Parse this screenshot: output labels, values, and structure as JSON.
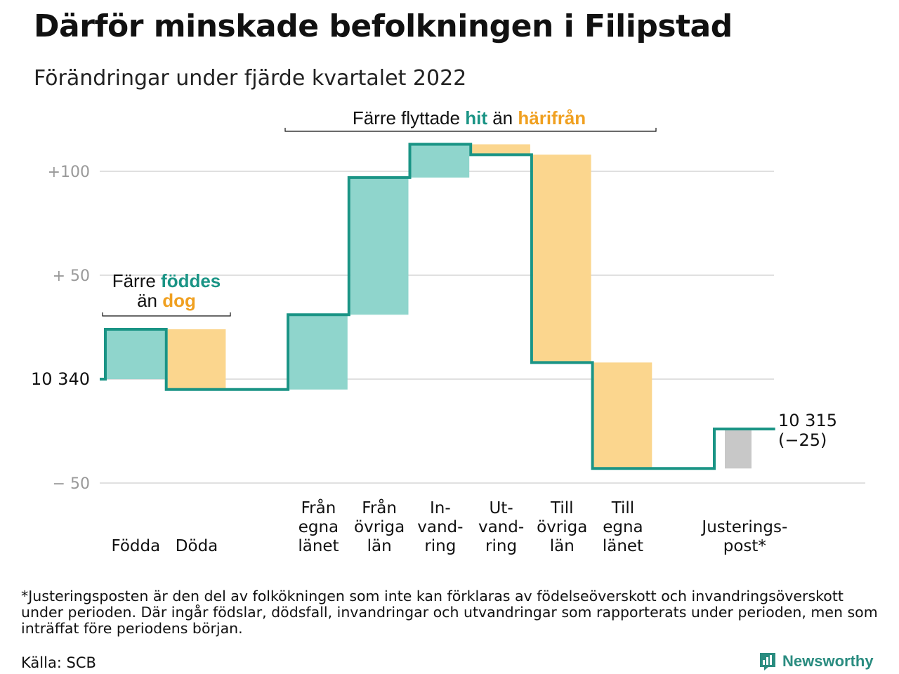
{
  "header": {
    "title": "Därför minskade befolkningen i Filipstad",
    "subtitle": "Förändringar under fjärde kvartalet 2022"
  },
  "colors": {
    "increase": "#8fd5cc",
    "decrease": "#fbd68e",
    "adjustment": "#c8c8c8",
    "line": "#1a9485",
    "highlight_teal": "#1a9485",
    "highlight_orange": "#f0a020",
    "grid": "#e0e0e0",
    "tick_text": "#999999"
  },
  "chart_data": {
    "type": "waterfall",
    "start_value": 10340,
    "start_label": "10 340",
    "end_value": 10315,
    "end_label": "10 315",
    "end_change_label": "(−25)",
    "yticks": [
      {
        "value": 100,
        "label": "+100"
      },
      {
        "value": 50,
        "label": "+ 50"
      },
      {
        "value": 0,
        "label": "10 340"
      },
      {
        "value": -50,
        "label": "− 50"
      }
    ],
    "ylim": [
      -55,
      130
    ],
    "steps": [
      {
        "label_lines": [
          "Födda"
        ],
        "delta": 24,
        "kind": "increase"
      },
      {
        "label_lines": [
          "Döda"
        ],
        "delta": -29,
        "kind": "decrease"
      },
      {
        "label_lines": [],
        "delta": 0,
        "kind": "gap"
      },
      {
        "label_lines": [
          "Från",
          "egna",
          "länet"
        ],
        "delta": 36,
        "kind": "increase"
      },
      {
        "label_lines": [
          "Från",
          "övriga",
          "län"
        ],
        "delta": 66,
        "kind": "increase"
      },
      {
        "label_lines": [
          "In-",
          "vand-",
          "ring"
        ],
        "delta": 16,
        "kind": "increase"
      },
      {
        "label_lines": [
          "Ut-",
          "vand-",
          "ring"
        ],
        "delta": -5,
        "kind": "decrease"
      },
      {
        "label_lines": [
          "Till",
          "övriga",
          "län"
        ],
        "delta": -100,
        "kind": "decrease"
      },
      {
        "label_lines": [
          "Till",
          "egna",
          "länet"
        ],
        "delta": -51,
        "kind": "decrease"
      },
      {
        "label_lines": [],
        "delta": 0,
        "kind": "gap"
      },
      {
        "label_lines": [
          "Justerings-",
          "post*"
        ],
        "delta": 19,
        "kind": "adjustment"
      }
    ],
    "annotations": [
      {
        "id": "births",
        "parts": [
          {
            "text": "Färre ",
            "color": "default"
          },
          {
            "text": "föddes",
            "color": "teal"
          }
        ],
        "parts2": [
          {
            "text": "än ",
            "color": "default"
          },
          {
            "text": "dog",
            "color": "orange"
          }
        ]
      },
      {
        "id": "moves",
        "parts": [
          {
            "text": "Färre flyttade ",
            "color": "default"
          },
          {
            "text": "hit",
            "color": "teal"
          },
          {
            "text": " än ",
            "color": "default"
          },
          {
            "text": "härifrån",
            "color": "orange"
          }
        ]
      }
    ]
  },
  "footer": {
    "footnote": "*Justeringsposten är den del av folkökningen som inte kan förklaras av födelseöverskott och invandringsöverskott under perioden. Där ingår födslar, dödsfall, invandringar och utvandringar som rapporterats under perioden, men som inträffat före periodens början.",
    "source": "Källa: SCB",
    "brand": "Newsworthy",
    "brand_icon": "newsworthy-logo-icon"
  }
}
